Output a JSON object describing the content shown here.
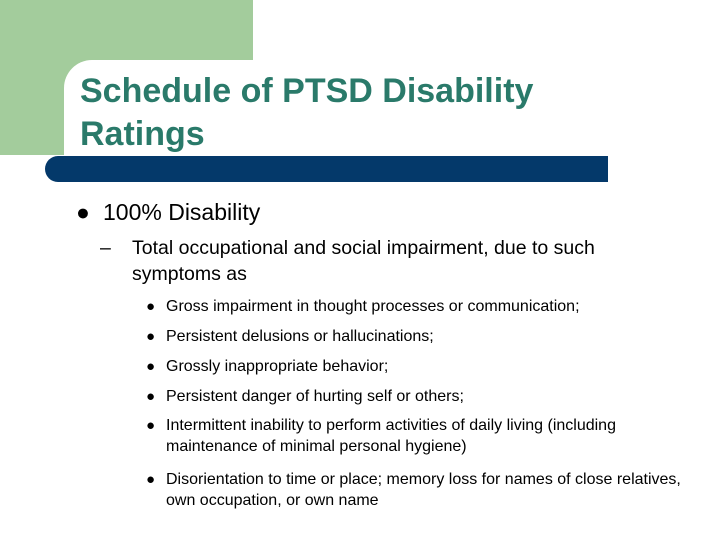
{
  "slide": {
    "title": "Schedule of PTSD Disability Ratings",
    "level1": {
      "bullet": "●",
      "text": "100% Disability"
    },
    "level2": {
      "dash": "–",
      "text": "Total occupational and social impairment, due to such symptoms as"
    },
    "level3": [
      {
        "bullet": "●",
        "text": "Gross impairment in thought processes or communication;"
      },
      {
        "bullet": "●",
        "text": "Persistent delusions or hallucinations;"
      },
      {
        "bullet": "●",
        "text": "Grossly inappropriate behavior;"
      },
      {
        "bullet": "●",
        "text": "Persistent danger of hurting self or others;"
      },
      {
        "bullet": "●",
        "text": "Intermittent inability to perform activities of daily living (including maintenance of minimal personal hygiene)"
      },
      {
        "bullet": "●",
        "text": "Disorientation to time or place; memory loss for names of close relatives, own occupation, or own name"
      }
    ]
  },
  "colors": {
    "accent_green": "#a3cc9c",
    "title_teal": "#2a7a6a",
    "bar_navy": "#04396a"
  }
}
